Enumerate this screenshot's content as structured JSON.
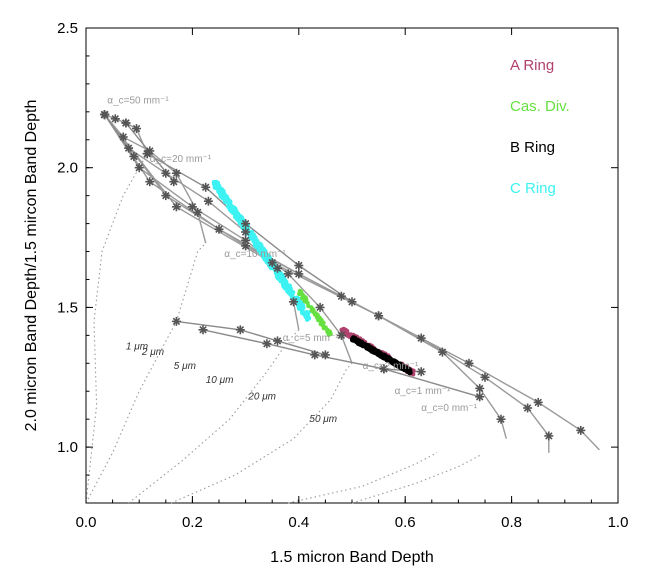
{
  "chart_data": {
    "type": "scatter",
    "title": "",
    "xlabel": "1.5 micron Band Depth",
    "ylabel": "2.0 micron Band Depth/1.5 mircon Band Depth",
    "xlim": [
      0.0,
      1.0
    ],
    "ylim": [
      0.8,
      2.5
    ],
    "xticks": [
      "0.0",
      "0.2",
      "0.4",
      "0.6",
      "0.8",
      "1.0"
    ],
    "yticks": [
      "1.0",
      "1.5",
      "2.0",
      "2.5"
    ],
    "xtick_values": [
      0.0,
      0.2,
      0.4,
      0.6,
      0.8,
      1.0
    ],
    "ytick_values": [
      1.0,
      1.5,
      2.0,
      2.5
    ],
    "legend": [
      {
        "label": "A Ring",
        "color": "#b0426e"
      },
      {
        "label": "Cas. Div.",
        "color": "#66e040"
      },
      {
        "label": "B Ring",
        "color": "#000000"
      },
      {
        "label": "C Ring",
        "color": "#3cf2f2"
      }
    ],
    "legend_position": "top-right",
    "contamination_curves": [
      {
        "label": "α_c=50 mm⁻¹",
        "x": [
          0.035,
          0.055,
          0.075,
          0.095,
          0.115
        ],
        "y": [
          2.19,
          2.175,
          2.16,
          2.14,
          2.05
        ]
      },
      {
        "label": "α_c=20 mm⁻¹",
        "x": [
          0.035,
          0.07,
          0.12,
          0.17,
          0.21,
          0.225
        ],
        "y": [
          2.19,
          2.11,
          2.06,
          1.98,
          1.84,
          1.73
        ]
      },
      {
        "label": "α_c=10 mm⁻¹",
        "x": [
          0.035,
          0.08,
          0.15,
          0.23,
          0.3,
          0.36,
          0.39,
          0.4
        ],
        "y": [
          2.19,
          2.07,
          1.98,
          1.88,
          1.77,
          1.64,
          1.52,
          1.42
        ]
      },
      {
        "label": "α_c=5 mm⁻¹",
        "x": [
          0.035,
          0.1,
          0.2,
          0.3,
          0.38,
          0.44,
          0.48,
          0.5
        ],
        "y": [
          2.19,
          2.0,
          1.86,
          1.74,
          1.62,
          1.5,
          1.4,
          1.3
        ]
      },
      {
        "label": "α_c=2 mm⁻¹",
        "x": [
          0.035,
          0.12,
          0.25,
          0.4,
          0.55,
          0.67,
          0.74,
          0.78,
          0.79
        ],
        "y": [
          2.19,
          1.95,
          1.78,
          1.62,
          1.47,
          1.34,
          1.21,
          1.1,
          1.03
        ]
      },
      {
        "label": "α_c=1 mm⁻¹",
        "x": [
          0.035,
          0.15,
          0.3,
          0.48,
          0.63,
          0.75,
          0.83,
          0.87,
          0.87
        ],
        "y": [
          2.19,
          1.9,
          1.72,
          1.54,
          1.39,
          1.25,
          1.14,
          1.04,
          0.98
        ]
      },
      {
        "label": "α_c=0 mm⁻¹",
        "x": [
          0.035,
          0.17,
          0.35,
          0.55,
          0.72,
          0.85,
          0.93,
          0.965
        ],
        "y": [
          2.19,
          1.86,
          1.66,
          1.47,
          1.3,
          1.16,
          1.06,
          0.99
        ]
      }
    ],
    "grain_size_lines": [
      {
        "label": "1 μm",
        "x": [
          0.035,
          0.09
        ],
        "y": [
          2.19,
          2.04
        ]
      },
      {
        "label": "2 μm",
        "x": [
          0.075,
          0.165
        ],
        "y": [
          2.16,
          1.95
        ]
      },
      {
        "label": "5 μm",
        "x": [
          0.115,
          0.225,
          0.3,
          0.4,
          0.5
        ],
        "y": [
          2.05,
          1.93,
          1.8,
          1.65,
          1.52
        ]
      },
      {
        "label": "10 μm",
        "x": [
          0.17,
          0.29,
          0.36,
          0.45
        ],
        "y": [
          1.45,
          1.42,
          1.38,
          1.33
        ]
      },
      {
        "label": "20 μm",
        "x": [
          0.22,
          0.34,
          0.43,
          0.56,
          0.63
        ],
        "y": [
          1.42,
          1.37,
          1.33,
          1.28,
          1.27
        ]
      },
      {
        "label": "50 μm",
        "x": [
          0.56,
          0.74
        ],
        "y": [
          1.28,
          1.18
        ]
      }
    ],
    "scatter_series": [
      {
        "name": "C Ring",
        "x_range": [
          0.24,
          0.42
        ],
        "y_range": [
          1.46,
          1.95
        ]
      },
      {
        "name": "Cas. Div.",
        "x_range": [
          0.4,
          0.46
        ],
        "y_range": [
          1.4,
          1.56
        ]
      },
      {
        "name": "A Ring",
        "x_range": [
          0.48,
          0.62
        ],
        "y_range": [
          1.26,
          1.42
        ]
      },
      {
        "name": "B Ring",
        "x_range": [
          0.5,
          0.61
        ],
        "y_range": [
          1.27,
          1.39
        ]
      }
    ]
  }
}
